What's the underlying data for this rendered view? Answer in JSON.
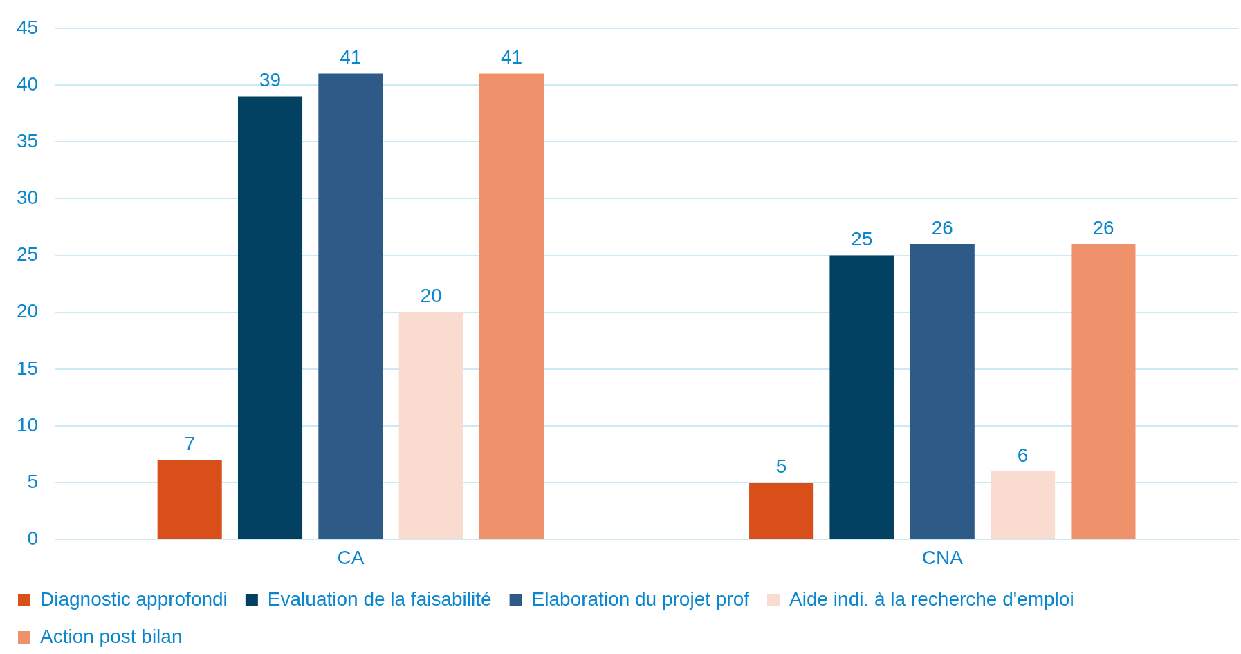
{
  "chart_data": {
    "type": "bar",
    "categories": [
      "CA",
      "CNA"
    ],
    "series": [
      {
        "name": "Diagnostic approfondi",
        "color": "#d84f19",
        "values": [
          7,
          5
        ]
      },
      {
        "name": "Evaluation de la faisabilité",
        "color": "#034163",
        "values": [
          39,
          25
        ]
      },
      {
        "name": "Elaboration du projet prof",
        "color": "#2e5a88",
        "values": [
          41,
          26
        ]
      },
      {
        "name": "Aide indi. à la recherche d'emploi",
        "color": "#f9dbcf",
        "values": [
          20,
          6
        ]
      },
      {
        "name": "Action post bilan",
        "color": "#ef926b",
        "values": [
          41,
          26
        ]
      }
    ],
    "ylim": [
      0,
      45
    ],
    "yticks": [
      0,
      5,
      10,
      15,
      20,
      25,
      30,
      35,
      40,
      45
    ],
    "grid": "y",
    "legend": "bottom",
    "data_labels": true
  }
}
